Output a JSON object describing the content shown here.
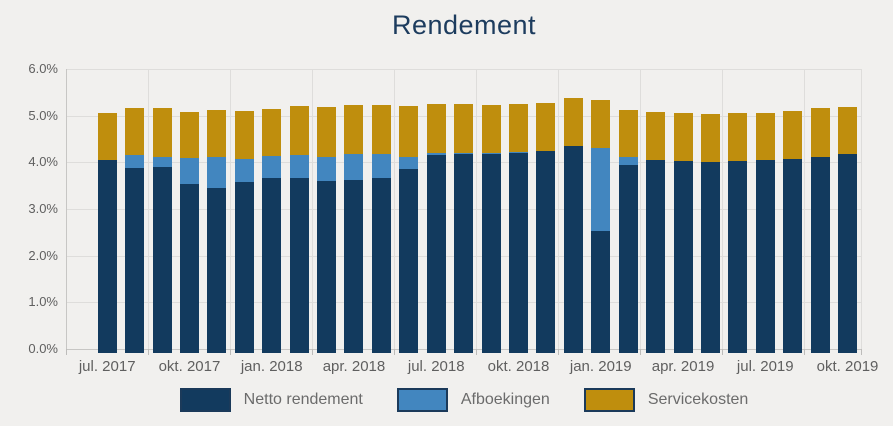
{
  "page": {
    "background": "#f1f0ee"
  },
  "chart_data": {
    "type": "bar",
    "stacked": true,
    "title": "Rendement",
    "xlabel": "",
    "ylabel": "",
    "ylim": [
      0,
      6
    ],
    "grid": true,
    "legend_position": "bottom",
    "y_ticks": [
      "6.0%",
      "5.0%",
      "4.0%",
      "3.0%",
      "2.0%",
      "1.0%",
      "0.0%"
    ],
    "x_tick_labels": [
      "jul. 2017",
      "okt. 2017",
      "jan. 2018",
      "apr. 2018",
      "jul. 2018",
      "okt. 2018",
      "jan. 2019",
      "apr. 2019",
      "jul. 2019",
      "okt. 2019"
    ],
    "categories": [
      "jul. 2017",
      "aug. 2017",
      "sep. 2017",
      "okt. 2017",
      "nov. 2017",
      "dec. 2017",
      "jan. 2018",
      "feb. 2018",
      "mrt. 2018",
      "apr. 2018",
      "mei 2018",
      "jun. 2018",
      "jul. 2018",
      "aug. 2018",
      "sep. 2018",
      "okt. 2018",
      "nov. 2018",
      "dec. 2018",
      "jan. 2019",
      "feb. 2019",
      "mrt. 2019",
      "apr. 2019",
      "mei 2019",
      "jun. 2019",
      "jul. 2019",
      "aug. 2019",
      "sep. 2019",
      "okt. 2019"
    ],
    "series": [
      {
        "name": "Netto rendement",
        "color": "#123a5e",
        "values": [
          4.06,
          3.87,
          3.91,
          3.54,
          3.46,
          3.58,
          3.67,
          3.67,
          3.6,
          3.62,
          3.66,
          3.85,
          4.15,
          4.17,
          4.17,
          4.19,
          4.24,
          4.34,
          2.52,
          3.95,
          4.05,
          4.03,
          4.0,
          4.02,
          4.04,
          4.08,
          4.12,
          4.17
        ]
      },
      {
        "name": "Afboekingen",
        "color": "#4286bf",
        "values": [
          0.0,
          0.28,
          0.21,
          0.55,
          0.65,
          0.49,
          0.46,
          0.49,
          0.52,
          0.55,
          0.51,
          0.26,
          0.05,
          0.04,
          0.04,
          0.03,
          0.0,
          0.0,
          1.78,
          0.17,
          0.0,
          0.0,
          0.0,
          0.0,
          0.0,
          0.0,
          0.0,
          0.0
        ]
      },
      {
        "name": "Servicekosten",
        "color": "#bf8e0d",
        "values": [
          1.0,
          1.01,
          1.04,
          1.0,
          1.01,
          1.04,
          1.02,
          1.05,
          1.06,
          1.05,
          1.05,
          1.1,
          1.04,
          1.05,
          1.02,
          1.03,
          1.04,
          1.03,
          1.03,
          1.01,
          1.03,
          1.03,
          1.03,
          1.03,
          1.02,
          1.03,
          1.04,
          1.02
        ]
      }
    ]
  },
  "legend": {
    "swatch_border": "#1b3a5a"
  }
}
